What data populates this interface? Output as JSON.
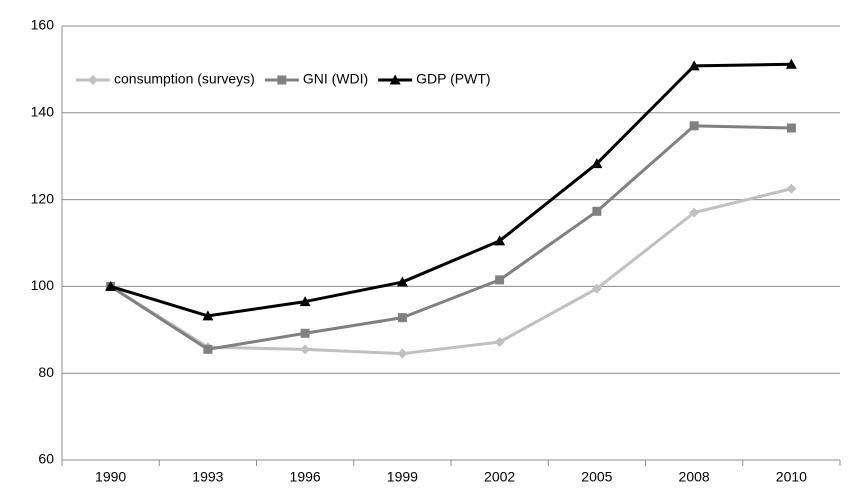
{
  "chart_data": {
    "type": "line",
    "categories": [
      "1990",
      "1993",
      "1996",
      "1999",
      "2002",
      "2005",
      "2008",
      "2010"
    ],
    "series": [
      {
        "name": "consumption (surveys)",
        "color": "#c0c0c0",
        "marker": "diamond",
        "values": [
          100,
          86,
          85.5,
          84.5,
          87.2,
          99.5,
          117,
          122.5
        ]
      },
      {
        "name": "GNI (WDI)",
        "color": "#808080",
        "marker": "square",
        "values": [
          100,
          85.5,
          89.2,
          92.8,
          101.5,
          117.3,
          137,
          136.5
        ]
      },
      {
        "name": "GDP (PWT)",
        "color": "#000000",
        "marker": "triangle",
        "values": [
          100,
          93.2,
          96.5,
          101,
          110.5,
          128.3,
          150.8,
          151.2
        ]
      }
    ],
    "ylim": [
      60,
      160
    ],
    "yticks": [
      60,
      80,
      100,
      120,
      140,
      160
    ],
    "grid": true,
    "legend": "top-left"
  }
}
